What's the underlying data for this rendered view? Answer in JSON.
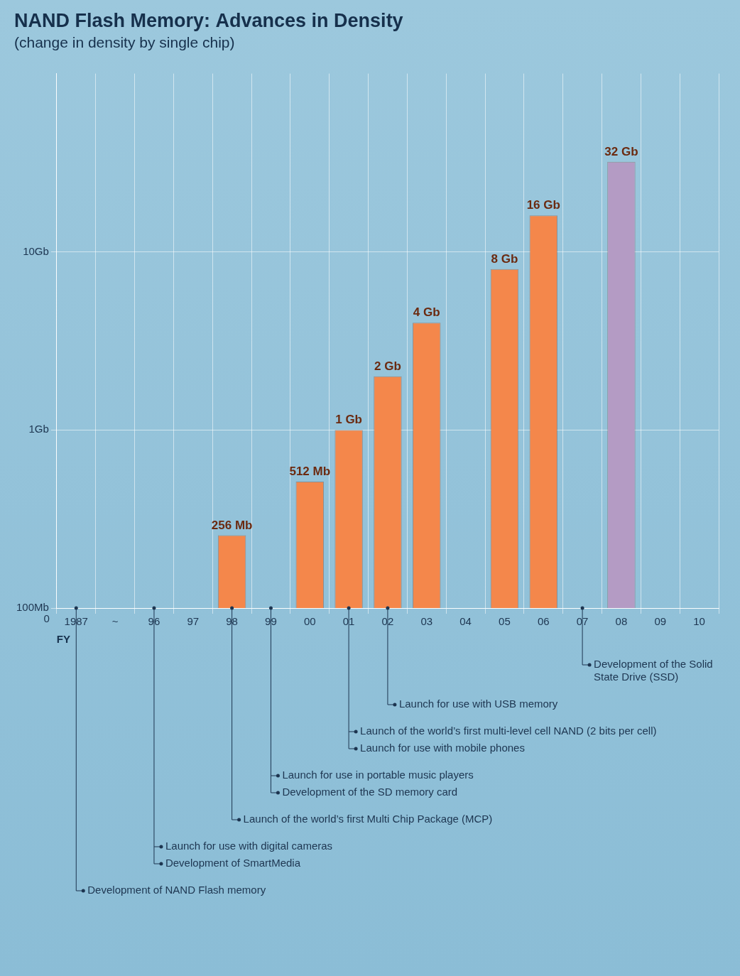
{
  "chart_data": {
    "type": "bar",
    "title": "NAND Flash Memory: Advances in Density",
    "subtitle": "(change in density by single chip)",
    "x_label": "FY",
    "y_origin_label": "0",
    "categories": [
      "1987",
      "~",
      "96",
      "97",
      "98",
      "99",
      "00",
      "01",
      "02",
      "03",
      "04",
      "05",
      "06",
      "07",
      "08",
      "09",
      "10"
    ],
    "values": [
      null,
      null,
      null,
      null,
      0.256,
      null,
      0.512,
      1,
      2,
      4,
      null,
      8,
      16,
      null,
      32,
      null,
      null
    ],
    "value_labels": [
      null,
      null,
      null,
      null,
      "256 Mb",
      null,
      "512 Mb",
      "1 Gb",
      "2 Gb",
      "4 Gb",
      null,
      "8 Gb",
      "16 Gb",
      null,
      "32 Gb",
      null,
      null
    ],
    "colors": [
      null,
      null,
      null,
      null,
      "#f4874b",
      null,
      "#f4874b",
      "#f4874b",
      "#f4874b",
      "#f4874b",
      null,
      "#f4874b",
      "#f4874b",
      null,
      "#b49bc4",
      null,
      null
    ],
    "ylim": [
      0.1,
      100
    ],
    "yticks": [
      {
        "value": 0.1,
        "label": "100Mb"
      },
      {
        "value": 1,
        "label": "1Gb"
      },
      {
        "value": 10,
        "label": "10Gb"
      }
    ],
    "log": "y",
    "grid": true,
    "data_labels": true,
    "annotations": [
      {
        "category": "1987",
        "texts": [
          "Development of NAND Flash memory"
        ]
      },
      {
        "category": "96",
        "texts": [
          "Launch for use with digital cameras",
          "Development of SmartMedia"
        ]
      },
      {
        "category": "98",
        "texts": [
          "Launch of the world’s first Multi Chip Package (MCP)"
        ]
      },
      {
        "category": "99",
        "texts": [
          "Launch for use in portable music players",
          "Development of the SD memory card"
        ]
      },
      {
        "category": "01",
        "texts": [
          "Launch of the world’s first multi-level cell NAND (2 bits per cell)",
          "Launch for use with mobile phones"
        ]
      },
      {
        "category": "02",
        "texts": [
          "Launch for use with USB memory"
        ]
      },
      {
        "category": "07",
        "texts": [
          "Development of the Solid State Drive (SSD)"
        ]
      }
    ]
  }
}
